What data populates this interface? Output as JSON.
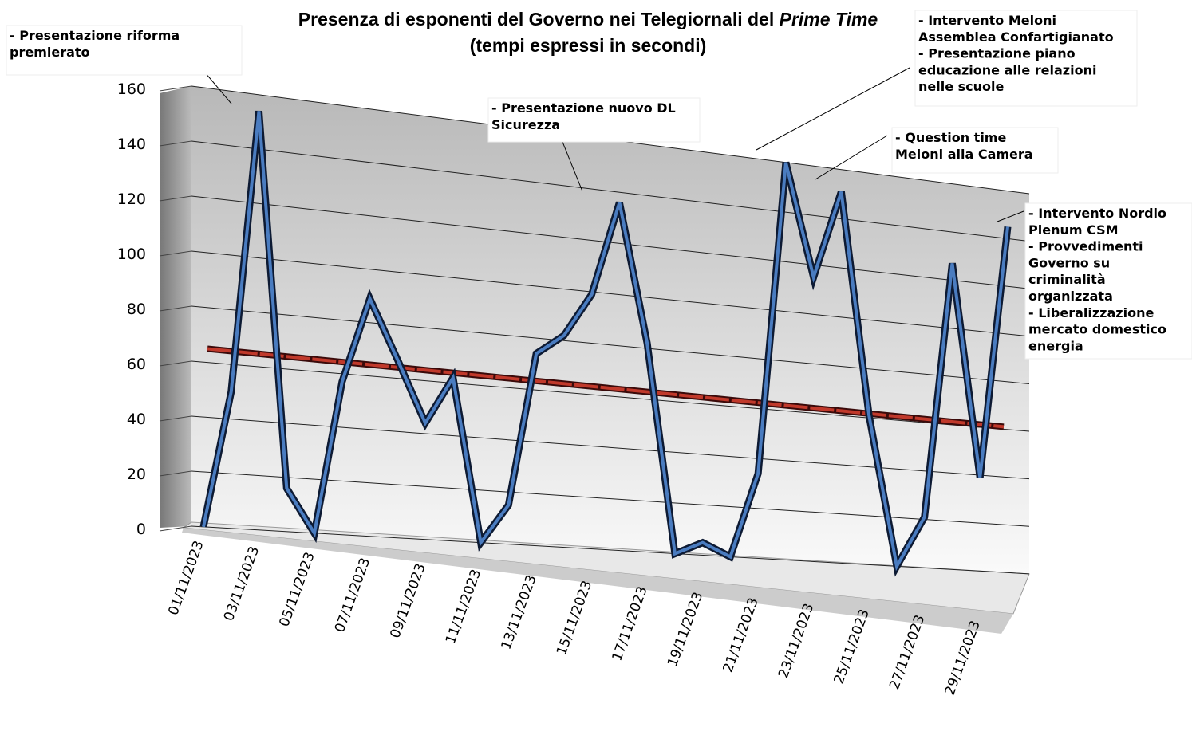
{
  "chart_data": {
    "type": "line",
    "title": "Presenza di esponenti del Governo nei Telegiornali del ",
    "title_italic": "Prime Time",
    "subtitle": "(tempi espressi in secondi)",
    "categories": [
      "01/11/2023",
      null,
      "03/11/2023",
      null,
      "05/11/2023",
      null,
      "07/11/2023",
      null,
      "09/11/2023",
      null,
      "11/11/2023",
      null,
      "13/11/2023",
      null,
      "15/11/2023",
      null,
      "17/11/2023",
      null,
      "19/11/2023",
      null,
      "21/11/2023",
      null,
      "23/11/2023",
      null,
      "25/11/2023",
      null,
      "27/11/2023",
      null,
      "29/11/2023",
      null
    ],
    "series": [
      {
        "color": "#4a7cc0",
        "values": [
          0,
          50,
          154,
          16,
          0,
          57,
          89,
          67,
          44,
          62,
          0,
          15,
          74,
          82,
          99,
          136,
          82,
          0,
          5,
          0,
          34,
          160,
          115,
          151,
          61,
          0,
          21,
          127,
          39,
          145
        ]
      }
    ],
    "trend": {
      "color": "#c0392b",
      "values": [
        65,
        61
      ]
    },
    "ylim": [
      0,
      160
    ],
    "yticks": [
      0,
      20,
      40,
      60,
      80,
      100,
      120,
      140,
      160
    ],
    "grid": true,
    "annotations": [
      {
        "lines": [
          "- Presentazione riforma",
          "premierato"
        ]
      },
      {
        "lines": [
          "- Presentazione nuovo DL",
          "Sicurezza"
        ]
      },
      {
        "lines": [
          "- Intervento Meloni",
          "Assemblea Confartigianato",
          "- Presentazione piano",
          "educazione alle relazioni",
          "nelle scuole"
        ]
      },
      {
        "lines": [
          "- Question time",
          "Meloni alla Camera"
        ]
      },
      {
        "lines": [
          "- Intervento Nordio",
          "Plenum CSM",
          "- Provvedimenti",
          "Governo su",
          "criminalità",
          "organizzata",
          "- Liberalizzazione",
          "mercato domestico",
          "energia"
        ]
      }
    ]
  }
}
